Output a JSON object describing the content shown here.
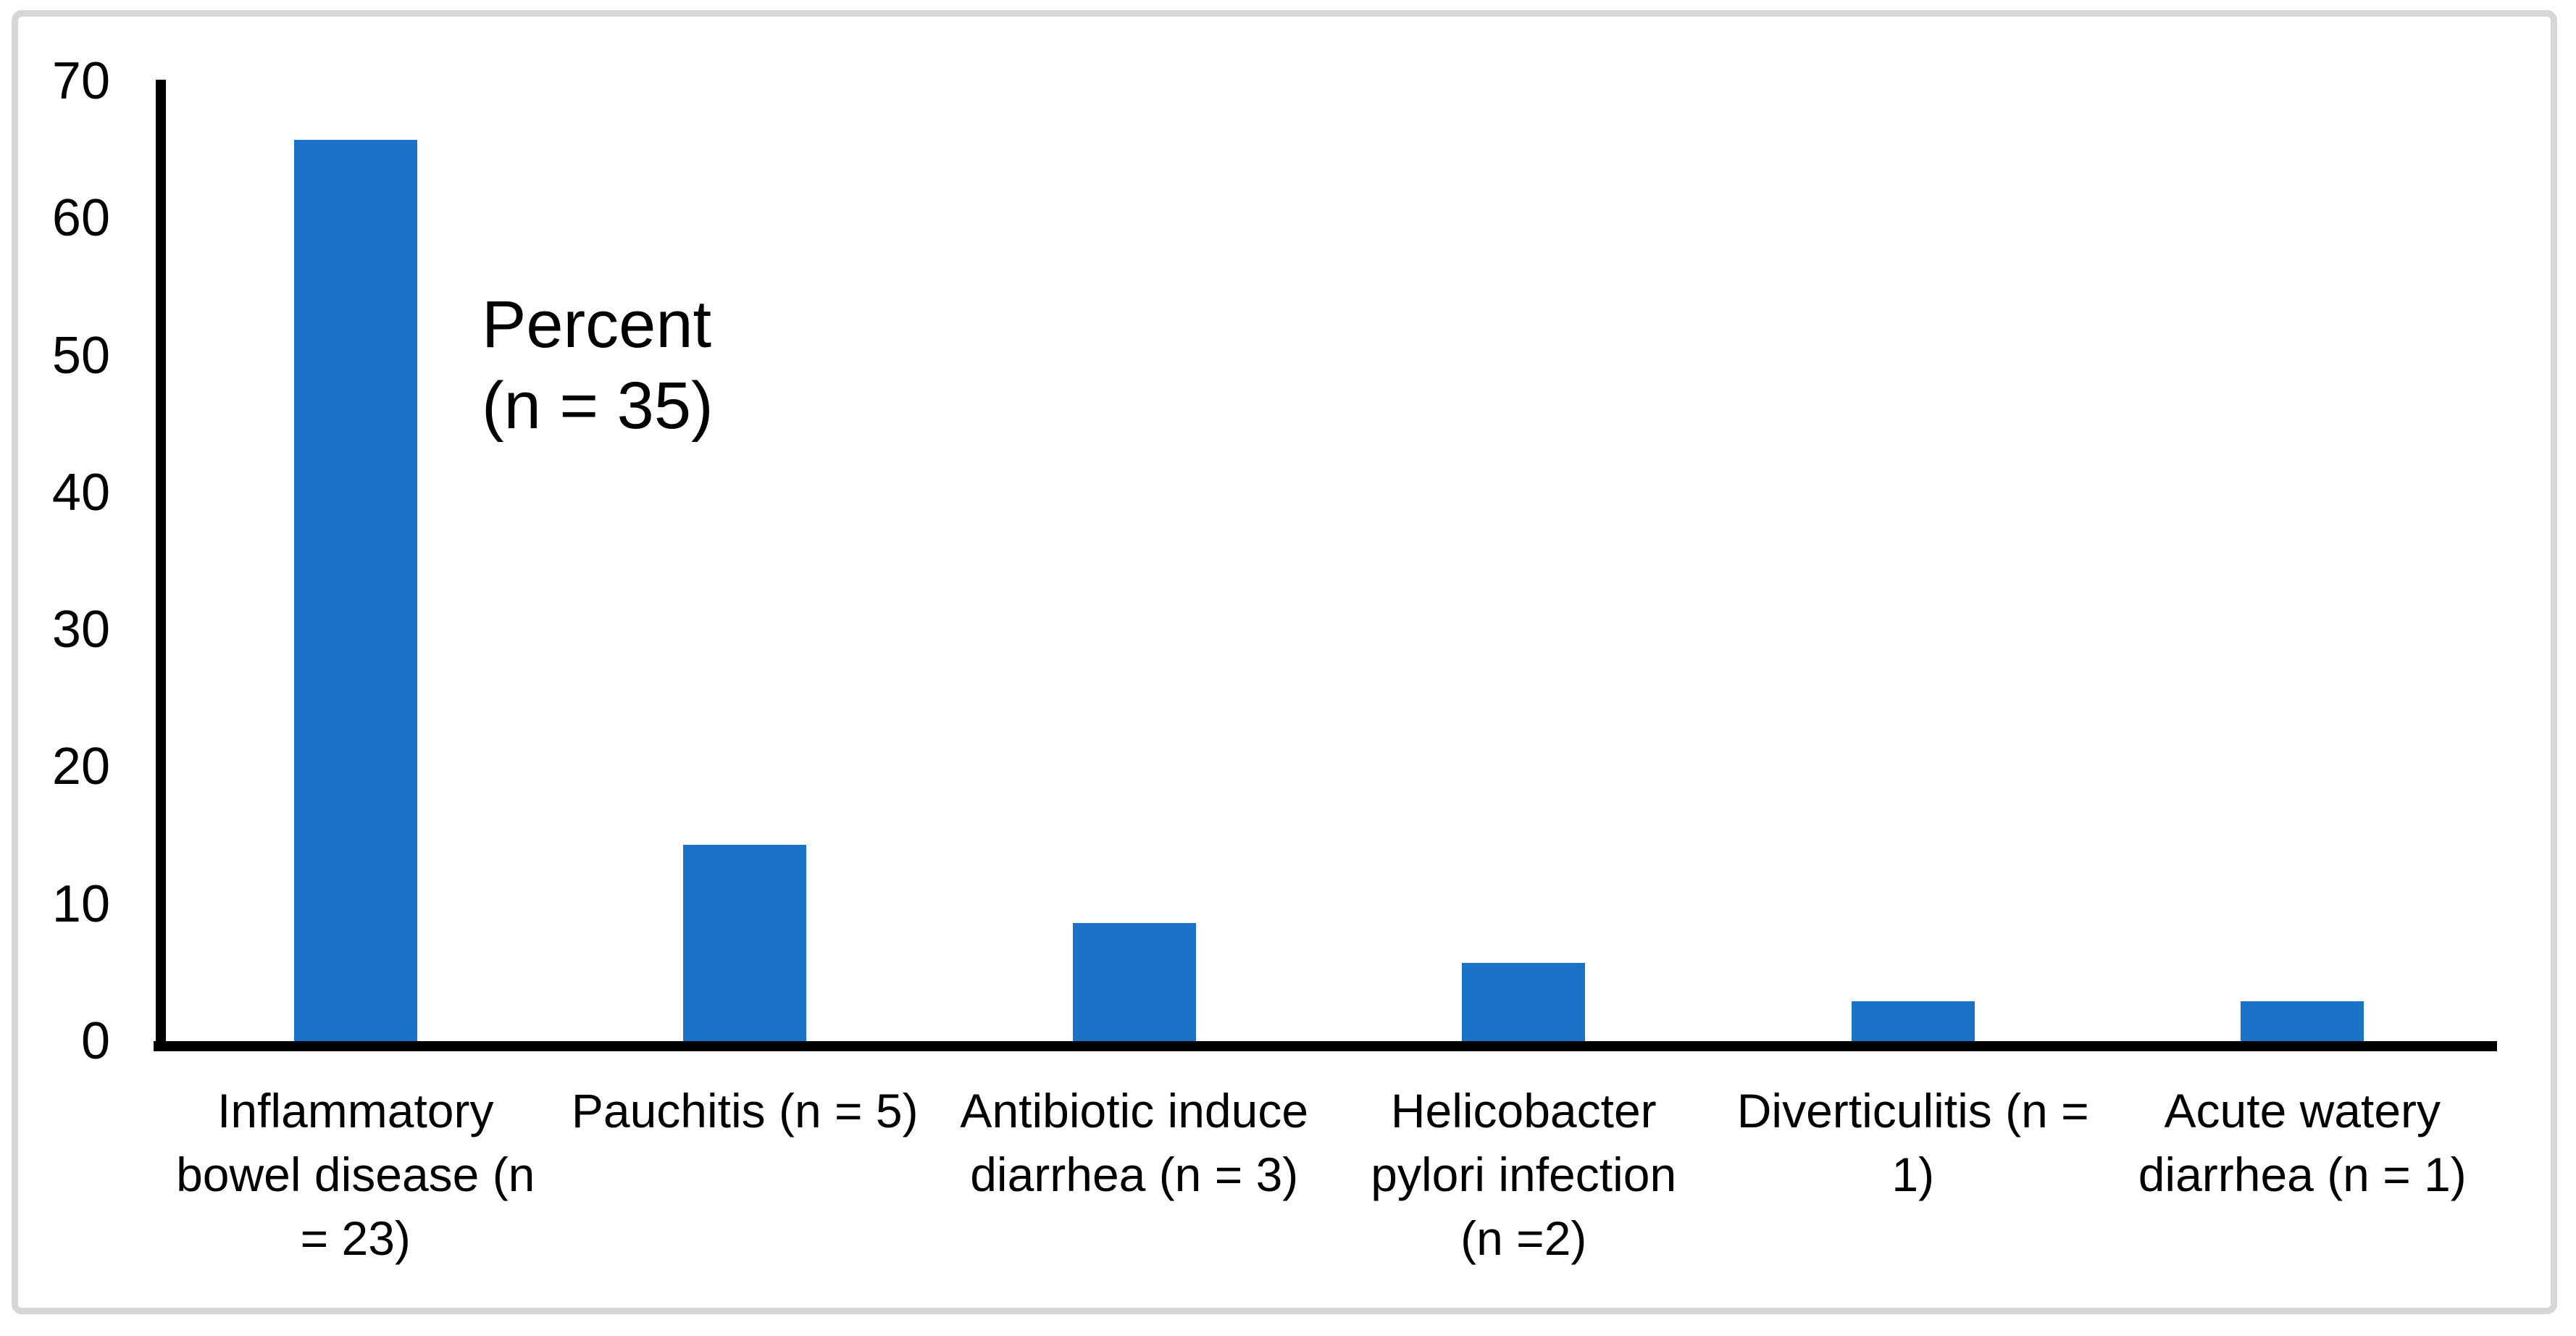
{
  "chart_data": {
    "type": "bar",
    "title": "",
    "annotation": "Percent\n(n = 35)",
    "total_n": 35,
    "categories": [
      "Inflammatory bowel disease (n = 23)",
      "Pauchitis (n = 5)",
      "Antibiotic induce diarrhea (n = 3)",
      "Helicobacter pylori infection (n =2)",
      "Diverticulitis (n = 1)",
      "Acute watery diarrhea (n = 1)"
    ],
    "category_label_lines": [
      [
        "Inflammatory",
        "bowel disease (n",
        "= 23)"
      ],
      [
        "Pauchitis (n = 5)"
      ],
      [
        "Antibiotic induce",
        "diarrhea (n = 3)"
      ],
      [
        "Helicobacter",
        "pylori infection",
        "(n =2)"
      ],
      [
        "Diverticulitis (n =",
        "1)"
      ],
      [
        "Acute watery",
        "diarrhea (n = 1)"
      ]
    ],
    "counts": [
      23,
      5,
      3,
      2,
      1,
      1
    ],
    "values": [
      65.7,
      14.3,
      8.6,
      5.7,
      2.9,
      2.9
    ],
    "unit": "percent",
    "xlabel": "",
    "ylabel": "",
    "ylim": [
      0,
      70
    ],
    "yticks": [
      0,
      10,
      20,
      30,
      40,
      50,
      60,
      70
    ],
    "grid": false,
    "legend": "none",
    "bar_color": "#1b73c8",
    "axis_color": "#000000",
    "frame_color": "#d6d6d6"
  }
}
